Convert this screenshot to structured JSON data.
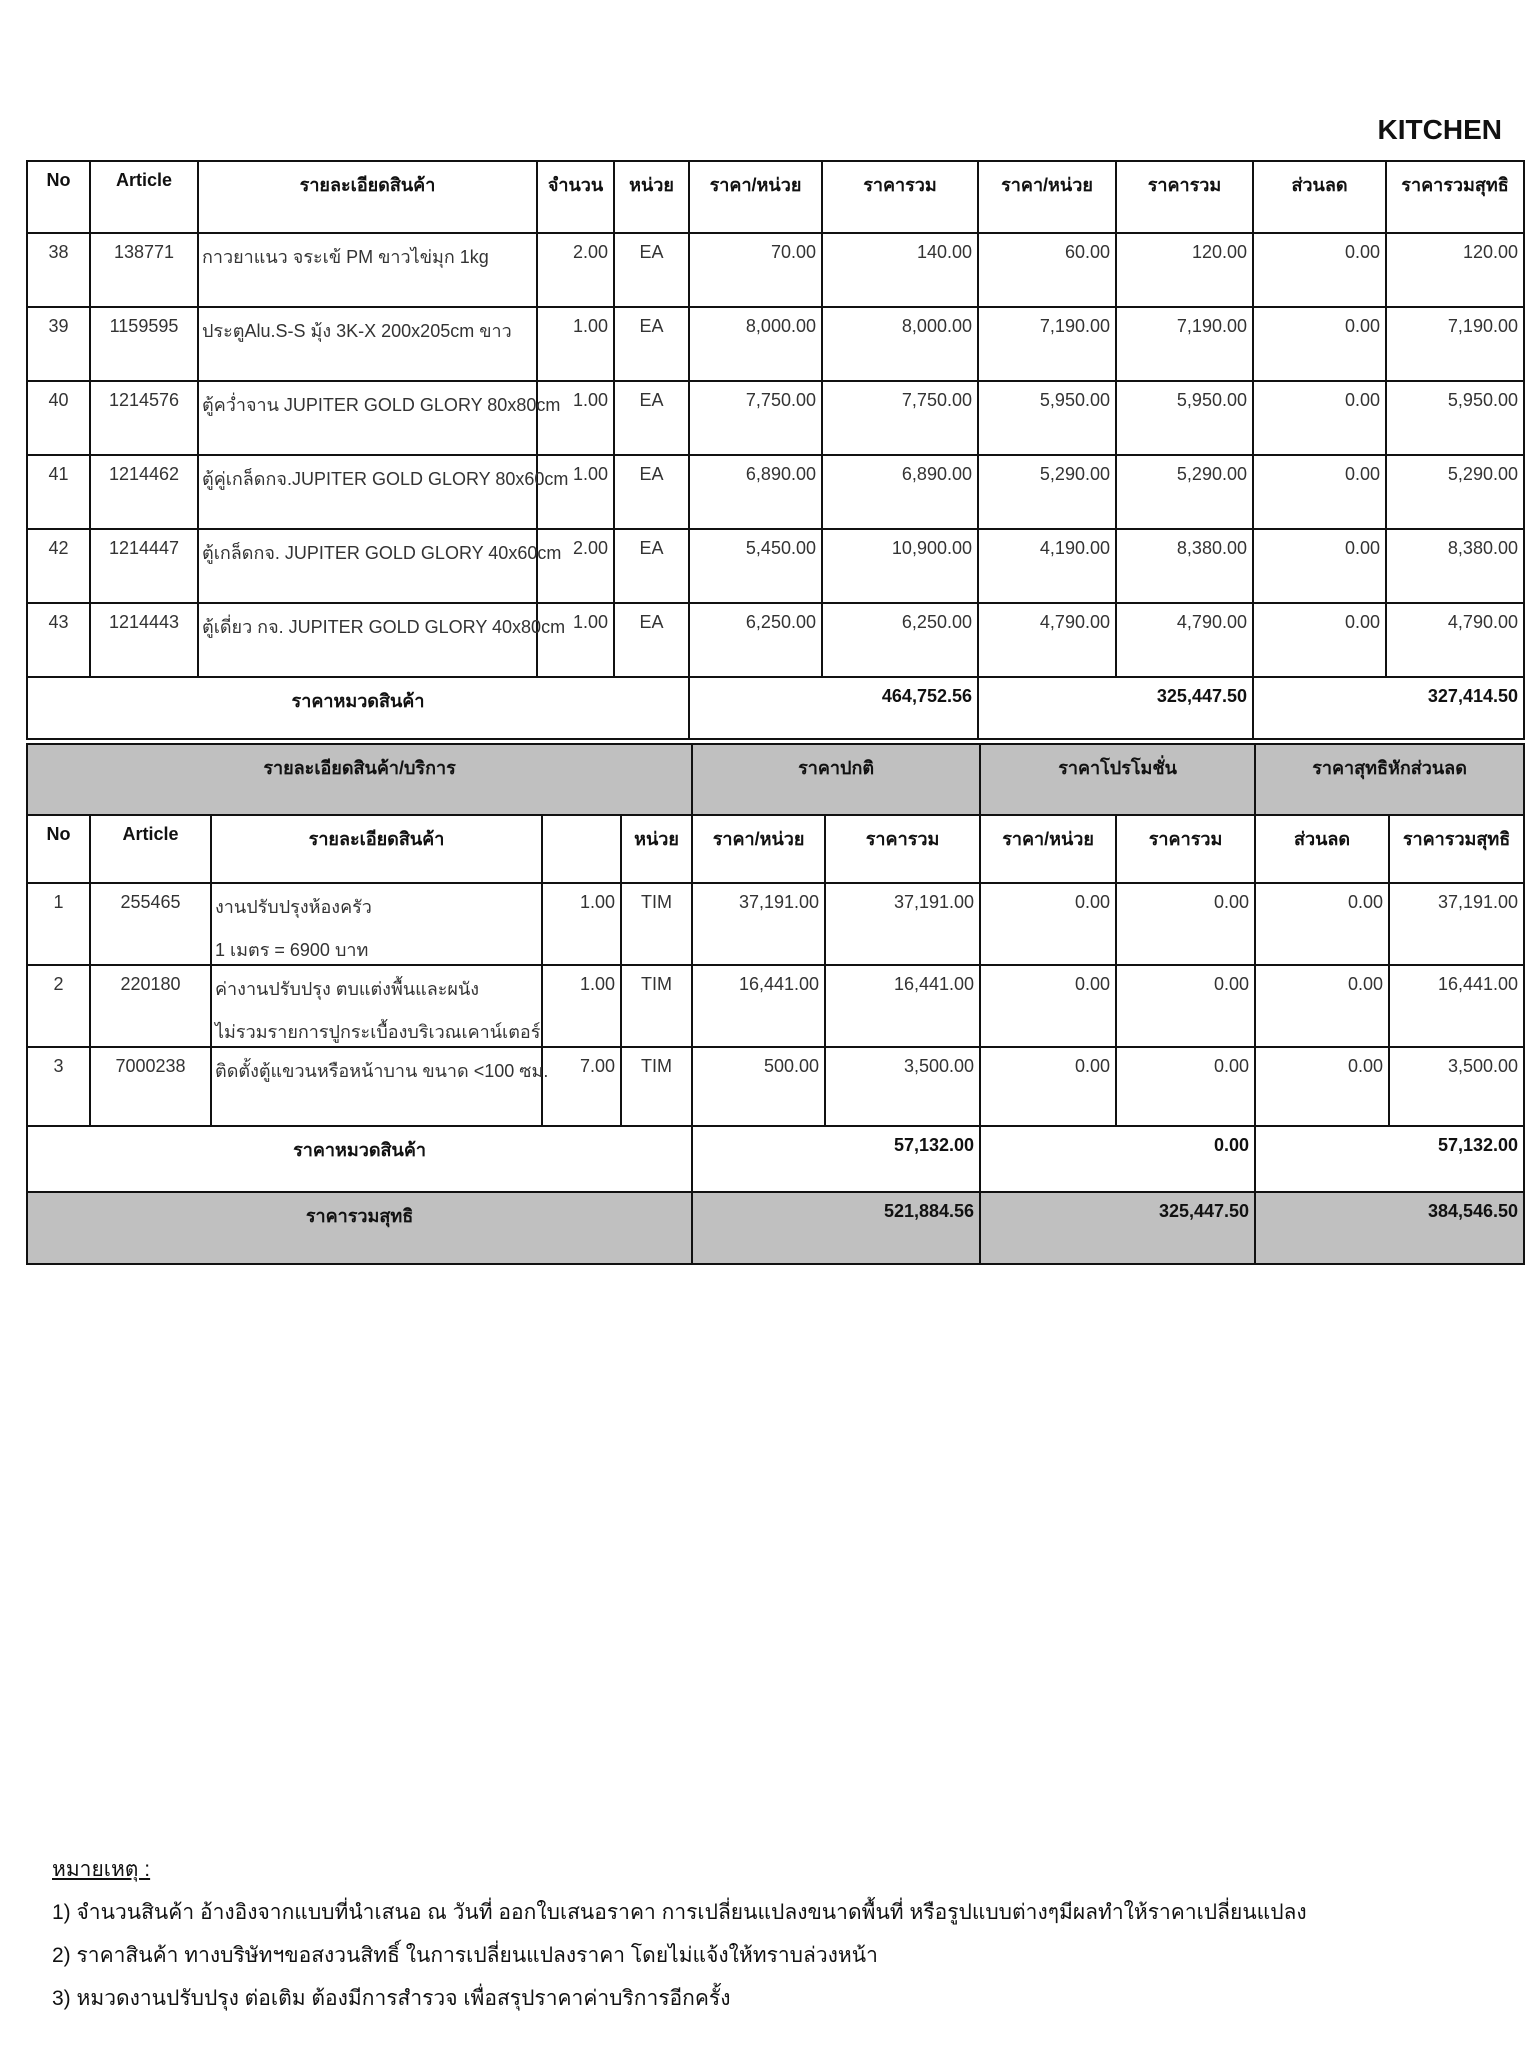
{
  "page_title": "KITCHEN",
  "products_table": {
    "headers": [
      "No",
      "Article",
      "รายละเอียดสินค้า",
      "จำนวน",
      "หน่วย",
      "ราคา/หน่วย",
      "ราคารวม",
      "ราคา/หน่วย",
      "ราคารวม",
      "ส่วนลด",
      "ราคารวมสุทธิ"
    ],
    "rows": [
      {
        "no": "38",
        "article": "138771",
        "desc": "กาวยาแนว จระเข้ PM ขาวไข่มุก 1kg",
        "qty": "2.00",
        "unit": "EA",
        "unit_price": "70.00",
        "total": "140.00",
        "promo_unit": "60.00",
        "promo_total": "120.00",
        "discount": "0.00",
        "net": "120.00"
      },
      {
        "no": "39",
        "article": "1159595",
        "desc": "ประตูAlu.S-S มุ้ง 3K-X 200x205cm ขาว",
        "qty": "1.00",
        "unit": "EA",
        "unit_price": "8,000.00",
        "total": "8,000.00",
        "promo_unit": "7,190.00",
        "promo_total": "7,190.00",
        "discount": "0.00",
        "net": "7,190.00"
      },
      {
        "no": "40",
        "article": "1214576",
        "desc": "ตู้คว่ำจาน JUPITER GOLD GLORY 80x80cm",
        "qty": "1.00",
        "unit": "EA",
        "unit_price": "7,750.00",
        "total": "7,750.00",
        "promo_unit": "5,950.00",
        "promo_total": "5,950.00",
        "discount": "0.00",
        "net": "5,950.00"
      },
      {
        "no": "41",
        "article": "1214462",
        "desc": "ตู้คู่เกล็ดกจ.JUPITER GOLD GLORY 80x60cm",
        "qty": "1.00",
        "unit": "EA",
        "unit_price": "6,890.00",
        "total": "6,890.00",
        "promo_unit": "5,290.00",
        "promo_total": "5,290.00",
        "discount": "0.00",
        "net": "5,290.00"
      },
      {
        "no": "42",
        "article": "1214447",
        "desc": "ตู้เกล็ดกจ. JUPITER GOLD GLORY 40x60cm",
        "qty": "2.00",
        "unit": "EA",
        "unit_price": "5,450.00",
        "total": "10,900.00",
        "promo_unit": "4,190.00",
        "promo_total": "8,380.00",
        "discount": "0.00",
        "net": "8,380.00"
      },
      {
        "no": "43",
        "article": "1214443",
        "desc": "ตู้เดี่ยว กจ. JUPITER GOLD GLORY 40x80cm",
        "qty": "1.00",
        "unit": "EA",
        "unit_price": "6,250.00",
        "total": "6,250.00",
        "promo_unit": "4,790.00",
        "promo_total": "4,790.00",
        "discount": "0.00",
        "net": "4,790.00"
      }
    ],
    "subtotal": {
      "label": "ราคาหมวดสินค้า",
      "regular": "464,752.56",
      "promo": "325,447.50",
      "net": "327,414.50"
    }
  },
  "services_table": {
    "group_headers": {
      "details": "รายละเอียดสินค้า/บริการ",
      "regular": "ราคาปกติ",
      "promo": "ราคาโปรโมชั่น",
      "net": "ราคาสุทธิหักส่วนลด"
    },
    "headers": [
      "No",
      "Article",
      "รายละเอียดสินค้า",
      "",
      "หน่วย",
      "ราคา/หน่วย",
      "ราคารวม",
      "ราคา/หน่วย",
      "ราคารวม",
      "ส่วนลด",
      "ราคารวมสุทธิ"
    ],
    "rows": [
      {
        "no": "1",
        "article": "255465",
        "desc": "งานปรับปรุงห้องครัว",
        "desc2": "1 เมตร = 6900 บาท",
        "qty": "1.00",
        "unit": "TIM",
        "unit_price": "37,191.00",
        "total": "37,191.00",
        "promo_unit": "0.00",
        "promo_total": "0.00",
        "discount": "0.00",
        "net": "37,191.00"
      },
      {
        "no": "2",
        "article": "220180",
        "desc": "ค่างานปรับปรุง ตบแต่งพื้นและผนัง",
        "desc2": "ไม่รวมรายการปูกระเบื้องบริเวณเคาน์เตอร์",
        "qty": "1.00",
        "unit": "TIM",
        "unit_price": "16,441.00",
        "total": "16,441.00",
        "promo_unit": "0.00",
        "promo_total": "0.00",
        "discount": "0.00",
        "net": "16,441.00"
      },
      {
        "no": "3",
        "article": "7000238",
        "desc": "ติดตั้งตู้แขวนหรือหน้าบาน ขนาด <100 ซม.",
        "desc2": "",
        "qty": "7.00",
        "unit": "TIM",
        "unit_price": "500.00",
        "total": "3,500.00",
        "promo_unit": "0.00",
        "promo_total": "0.00",
        "discount": "0.00",
        "net": "3,500.00"
      }
    ],
    "subtotal": {
      "label": "ราคาหมวดสินค้า",
      "regular": "57,132.00",
      "promo": "0.00",
      "net": "57,132.00"
    },
    "grand_total": {
      "label": "ราคารวมสุทธิ",
      "regular": "521,884.56",
      "promo": "325,447.50",
      "net": "384,546.50"
    }
  },
  "notes": {
    "title": "หมายเหตุ :",
    "items": [
      "1) จำนวนสินค้า อ้างอิงจากแบบที่นำเสนอ ณ วันที่ ออกใบเสนอราคา การเปลี่ยนแปลงขนาดพื้นที่ หรือรูปแบบต่างๆมีผลทำให้ราคาเปลี่ยนแปลง",
      "2) ราคาสินค้า ทางบริษัทฯขอสงวนสิทธิ์ ในการเปลี่ยนแปลงราคา โดยไม่แจ้งให้ทราบล่วงหน้า",
      "3) หมวดงานปรับปรุง ต่อเติม ต้องมีการสำรวจ เพื่อสรุปราคาค่าบริการอีกครั้ง"
    ]
  },
  "colors": {
    "header_gray": "#c0c0c0",
    "border": "#111111"
  }
}
